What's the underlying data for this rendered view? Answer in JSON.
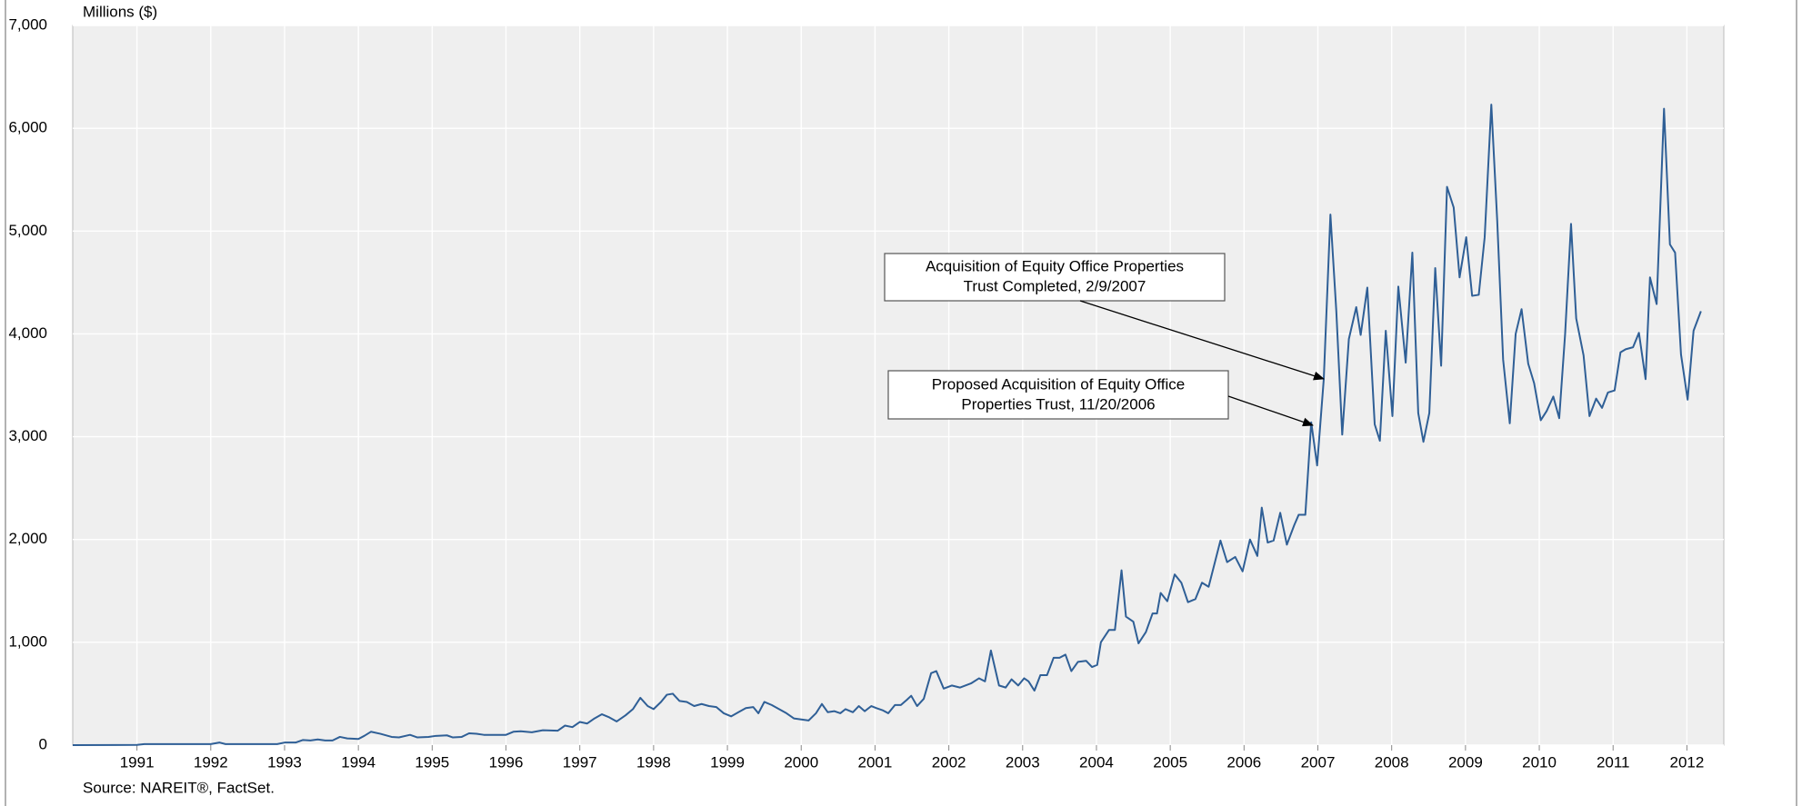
{
  "chart_data": {
    "type": "line",
    "y_axis_label": "Millions ($)",
    "source": "Source: NAREIT®, FactSet.",
    "xlim": [
      1990.13,
      2012.5
    ],
    "xticks": [
      1991,
      1992,
      1993,
      1994,
      1995,
      1996,
      1997,
      1998,
      1999,
      2000,
      2001,
      2002,
      2003,
      2004,
      2005,
      2006,
      2007,
      2008,
      2009,
      2010,
      2011,
      2012
    ],
    "ylim": [
      0,
      7000
    ],
    "yticks": [
      0,
      {
        "value": 1000,
        "label": "1,000"
      },
      {
        "value": 2000,
        "label": "2,000"
      },
      {
        "value": 3000,
        "label": "3,000"
      },
      {
        "value": 4000,
        "label": "4,000"
      },
      {
        "value": 5000,
        "label": "5,000"
      },
      {
        "value": 6000,
        "label": "6,000"
      },
      {
        "value": 7000,
        "label": "7,000"
      }
    ],
    "grid": true,
    "x": [
      1990.13,
      1991.0,
      1991.1,
      1992.0,
      1992.12,
      1992.2,
      1992.9,
      1993.0,
      1993.15,
      1993.25,
      1993.35,
      1993.45,
      1993.55,
      1993.65,
      1993.75,
      1993.85,
      1994.0,
      1994.08,
      1994.17,
      1994.3,
      1994.45,
      1994.55,
      1994.7,
      1994.8,
      1994.95,
      1995.05,
      1995.2,
      1995.28,
      1995.4,
      1995.5,
      1995.6,
      1995.7,
      1996.0,
      1996.1,
      1996.2,
      1996.35,
      1996.5,
      1996.7,
      1996.8,
      1996.9,
      1997.0,
      1997.1,
      1997.2,
      1997.3,
      1997.4,
      1997.5,
      1997.62,
      1997.72,
      1997.82,
      1997.92,
      1998.0,
      1998.1,
      1998.18,
      1998.26,
      1998.35,
      1998.45,
      1998.55,
      1998.65,
      1998.75,
      1998.85,
      1998.95,
      1999.05,
      1999.15,
      1999.25,
      1999.35,
      1999.42,
      1999.5,
      1999.6,
      1999.7,
      1999.8,
      1999.9,
      2000.0,
      2000.1,
      2000.2,
      2000.28,
      2000.36,
      2000.45,
      2000.53,
      2000.6,
      2000.7,
      2000.78,
      2000.86,
      2000.95,
      2001.02,
      2001.1,
      2001.18,
      2001.27,
      2001.35,
      2001.43,
      2001.49,
      2001.57,
      2001.66,
      2001.76,
      2001.83,
      2001.93,
      2002.04,
      2002.15,
      2002.3,
      2002.41,
      2002.49,
      2002.57,
      2002.68,
      2002.77,
      2002.85,
      2002.94,
      2003.02,
      2003.08,
      2003.16,
      2003.24,
      2003.33,
      2003.42,
      2003.5,
      2003.58,
      2003.66,
      2003.75,
      2003.86,
      2003.94,
      2004.01,
      2004.06,
      2004.17,
      2004.25,
      2004.34,
      2004.4,
      2004.5,
      2004.57,
      2004.67,
      2004.76,
      2004.82,
      2004.87,
      2004.96,
      2005.06,
      2005.15,
      2005.24,
      2005.34,
      2005.43,
      2005.52,
      2005.68,
      2005.77,
      2005.88,
      2005.98,
      2006.08,
      2006.18,
      2006.24,
      2006.32,
      2006.4,
      2006.49,
      2006.58,
      2006.68,
      2006.74,
      2006.83,
      2006.91,
      2006.99,
      2007.08,
      2007.17,
      2007.25,
      2007.33,
      2007.42,
      2007.52,
      2007.58,
      2007.67,
      2007.77,
      2007.84,
      2007.92,
      2008.01,
      2008.09,
      2008.19,
      2008.28,
      2008.36,
      2008.43,
      2008.51,
      2008.59,
      2008.67,
      2008.75,
      2008.84,
      2008.92,
      2009.01,
      2009.09,
      2009.18,
      2009.26,
      2009.35,
      2009.43,
      2009.51,
      2009.6,
      2009.68,
      2009.76,
      2009.85,
      2009.93,
      2010.02,
      2010.1,
      2010.19,
      2010.27,
      2010.35,
      2010.43,
      2010.5,
      2010.6,
      2010.68,
      2010.77,
      2010.85,
      2010.93,
      2011.02,
      2011.1,
      2011.17,
      2011.27,
      2011.35,
      2011.44,
      2011.5,
      2011.59,
      2011.69,
      2011.77,
      2011.84,
      2011.92,
      2012.01,
      2012.09,
      2012.19
    ],
    "series": [
      {
        "color": "#2f5f96",
        "values": [
          0,
          2,
          10,
          10,
          25,
          10,
          10,
          25,
          25,
          50,
          45,
          55,
          45,
          45,
          80,
          65,
          60,
          90,
          130,
          110,
          80,
          75,
          100,
          75,
          80,
          90,
          95,
          75,
          80,
          115,
          110,
          100,
          100,
          130,
          135,
          125,
          145,
          140,
          190,
          175,
          225,
          210,
          260,
          300,
          270,
          230,
          290,
          350,
          460,
          380,
          350,
          420,
          490,
          500,
          430,
          420,
          380,
          400,
          380,
          370,
          310,
          280,
          320,
          360,
          370,
          310,
          420,
          390,
          350,
          310,
          260,
          250,
          240,
          310,
          400,
          320,
          330,
          310,
          350,
          320,
          380,
          330,
          380,
          360,
          340,
          310,
          390,
          390,
          440,
          480,
          380,
          450,
          700,
          720,
          550,
          580,
          560,
          600,
          650,
          620,
          920,
          580,
          560,
          640,
          580,
          650,
          620,
          530,
          680,
          680,
          850,
          850,
          880,
          720,
          810,
          820,
          760,
          780,
          1000,
          1120,
          1120,
          1700,
          1250,
          1200,
          990,
          1100,
          1280,
          1280,
          1480,
          1400,
          1660,
          1580,
          1390,
          1420,
          1580,
          1540,
          1990,
          1780,
          1830,
          1690,
          2000,
          1840,
          2310,
          1970,
          1990,
          2260,
          1950,
          2140,
          2240,
          2240,
          3140,
          2720,
          3560,
          5160,
          4220,
          3020,
          3950,
          4260,
          3990,
          4450,
          3120,
          2960,
          4030,
          3200,
          4460,
          3720,
          4790,
          3230,
          2950,
          3230,
          4640,
          3690,
          5430,
          5230,
          4550,
          4940,
          4370,
          4380,
          4940,
          6230,
          5100,
          3750,
          3130,
          4000,
          4240,
          3710,
          3520,
          3160,
          3250,
          3390,
          3180,
          4000,
          5070,
          4150,
          3790,
          3200,
          3370,
          3280,
          3430,
          3450,
          3820,
          3850,
          3870,
          4010,
          3560,
          4550,
          4290,
          6190,
          4870,
          4790,
          3800,
          3360,
          4030,
          4220
        ]
      }
    ],
    "annotations": [
      {
        "lines": [
          "Acquisition of Equity Office Properties",
          "Trust Completed, 2/9/2007"
        ]
      },
      {
        "lines": [
          "Proposed Acquisition of Equity Office",
          "Properties Trust, 11/20/2006"
        ]
      }
    ]
  }
}
